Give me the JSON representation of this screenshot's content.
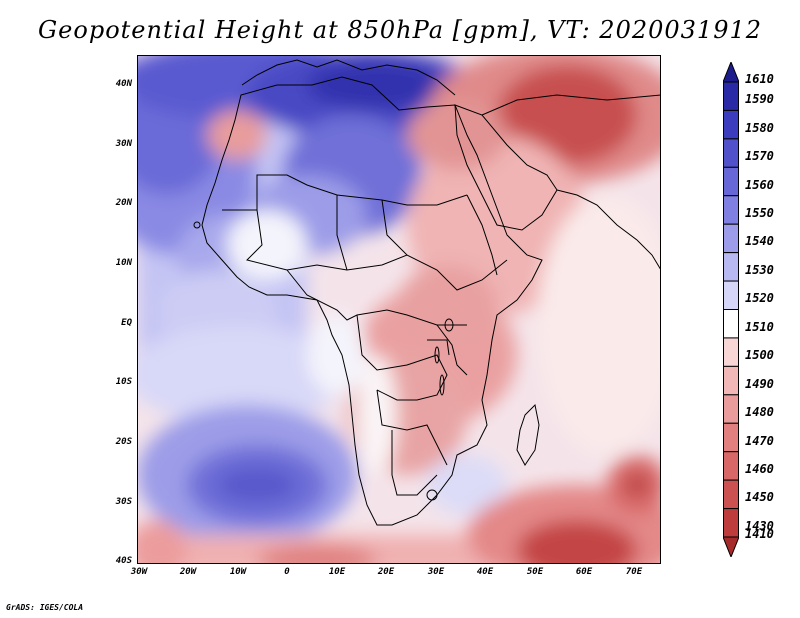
{
  "title": "Geopotential Height at 850hPa [gpm], VT: 2020031912",
  "footer": "GrADS: IGES/COLA",
  "axes": {
    "lat_labels": [
      "40N",
      "30N",
      "20N",
      "10N",
      "EQ",
      "10S",
      "20S",
      "30S",
      "40S"
    ],
    "lon_labels": [
      "30W",
      "20W",
      "10W",
      "0",
      "10E",
      "20E",
      "30E",
      "40E",
      "50E",
      "60E",
      "70E"
    ]
  },
  "colorbar": {
    "levels": [
      {
        "label": "1610",
        "color": "#1c1c8c"
      },
      {
        "label": "1590",
        "color": "#2a2aa6"
      },
      {
        "label": "1580",
        "color": "#3c3cbe"
      },
      {
        "label": "1570",
        "color": "#5151cc"
      },
      {
        "label": "1560",
        "color": "#6767d8"
      },
      {
        "label": "1550",
        "color": "#8080e2"
      },
      {
        "label": "1540",
        "color": "#9c9cea"
      },
      {
        "label": "1530",
        "color": "#b8b8f2"
      },
      {
        "label": "1520",
        "color": "#d6d6f8"
      },
      {
        "label": "1510",
        "color": "#ffffff"
      },
      {
        "label": "1500",
        "color": "#f8d6d6"
      },
      {
        "label": "1490",
        "color": "#f2b8b8"
      },
      {
        "label": "1480",
        "color": "#ea9c9c"
      },
      {
        "label": "1470",
        "color": "#e28080"
      },
      {
        "label": "1460",
        "color": "#d86767"
      },
      {
        "label": "1450",
        "color": "#cc5151"
      },
      {
        "label": "1430",
        "color": "#be3c3c"
      },
      {
        "label": "1410",
        "color": "#a62a2a"
      }
    ]
  }
}
